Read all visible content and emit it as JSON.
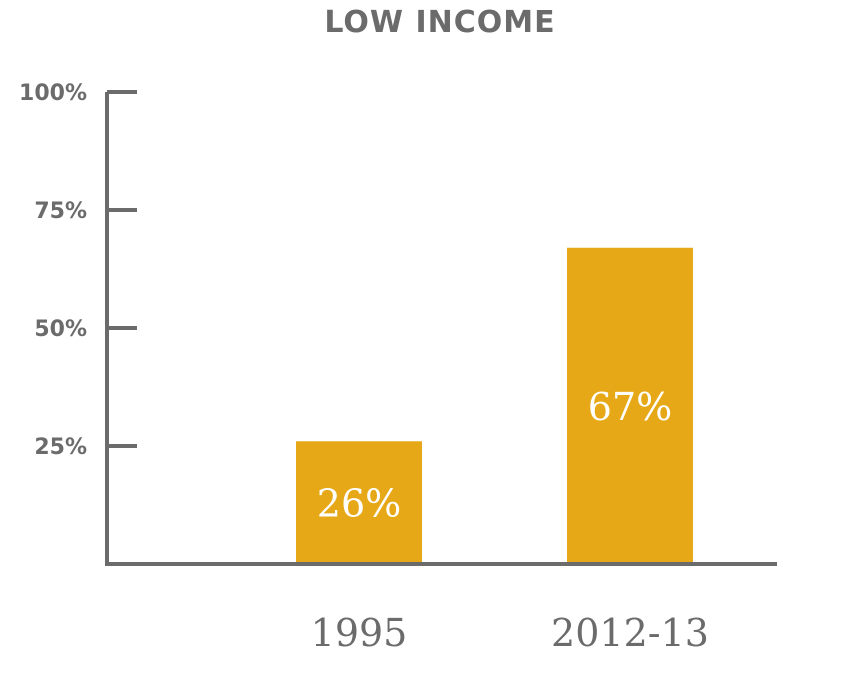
{
  "chart_data": {
    "type": "bar",
    "title": "LOW INCOME",
    "categories": [
      "1995",
      "2012-13"
    ],
    "values": [
      26,
      67
    ],
    "data_labels": [
      "26%",
      "67%"
    ],
    "ylim": [
      0,
      100
    ],
    "yticks": [
      25,
      50,
      75,
      100
    ],
    "ytick_labels": [
      "25%",
      "50%",
      "75%",
      "100%"
    ],
    "xlabel": "",
    "ylabel": "",
    "grid": false,
    "bar_color": "#e6a817",
    "axis_color": "#6b6b6b"
  }
}
